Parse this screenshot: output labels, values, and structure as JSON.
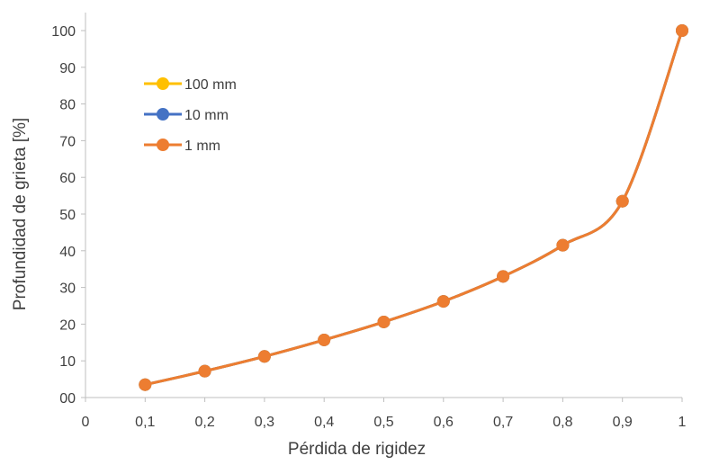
{
  "chart_data": {
    "type": "line",
    "title": "",
    "xlabel": "Pérdida de rigidez",
    "ylabel": "Profundidad de grieta [%]",
    "xlim": [
      0,
      1
    ],
    "ylim": [
      0,
      100
    ],
    "x_ticks": [
      0,
      0.1,
      0.2,
      0.3,
      0.4,
      0.5,
      0.6,
      0.7,
      0.8,
      0.9,
      1
    ],
    "x_tick_labels": [
      "0",
      "0,1",
      "0,2",
      "0,3",
      "0,4",
      "0,5",
      "0,6",
      "0,7",
      "0,8",
      "0,9",
      "1"
    ],
    "y_ticks": [
      0,
      10,
      20,
      30,
      40,
      50,
      60,
      70,
      80,
      90,
      100
    ],
    "y_tick_labels": [
      "00",
      "10",
      "20",
      "30",
      "40",
      "50",
      "60",
      "70",
      "80",
      "90",
      "100"
    ],
    "grid": false,
    "smooth": true,
    "legend_position": "upper-left",
    "x": [
      0.1,
      0.2,
      0.3,
      0.4,
      0.5,
      0.6,
      0.7,
      0.8,
      0.9,
      1.0
    ],
    "series": [
      {
        "name": "100 mm",
        "color": "#FFC000",
        "values": [
          3.5,
          7.2,
          11.2,
          15.7,
          20.6,
          26.2,
          33.0,
          41.5,
          53.5,
          100
        ]
      },
      {
        "name": "10 mm",
        "color": "#4472C4",
        "values": [
          3.5,
          7.2,
          11.2,
          15.7,
          20.6,
          26.2,
          33.0,
          41.5,
          53.5,
          100
        ]
      },
      {
        "name": "1 mm",
        "color": "#ED7D31",
        "values": [
          3.5,
          7.2,
          11.2,
          15.7,
          20.6,
          26.2,
          33.0,
          41.5,
          53.5,
          100
        ]
      }
    ]
  }
}
